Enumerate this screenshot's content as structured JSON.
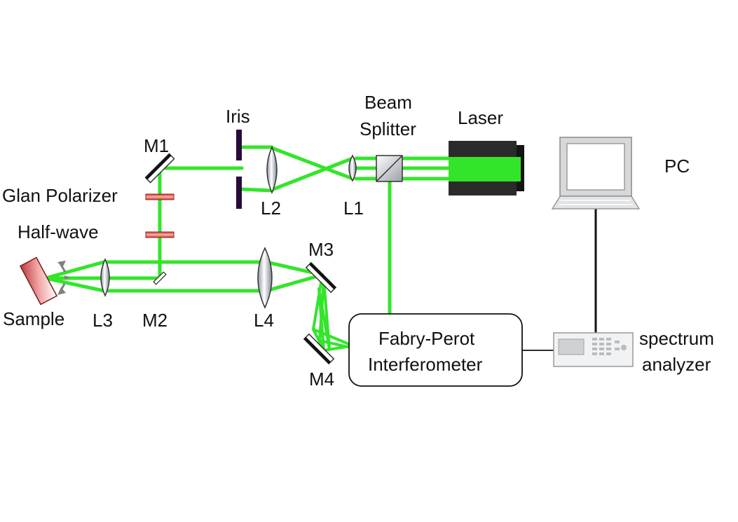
{
  "labels": {
    "iris": "Iris",
    "beam_splitter_line1": "Beam",
    "beam_splitter_line2": "Splitter",
    "laser": "Laser",
    "m1": "M1",
    "glan_polarizer": "Glan Polarizer",
    "half_wave": "Half-wave",
    "l2": "L2",
    "l1": "L1",
    "pc": "PC",
    "m3": "M3",
    "sample": "Sample",
    "l3": "L3",
    "m2": "M2",
    "l4": "L4",
    "fp_line1": "Fabry-Perot",
    "fp_line2": "Interferometer",
    "m4": "M4",
    "sa_line1": "spectrum",
    "sa_line2": "analyzer"
  },
  "colors": {
    "beam": "#33e52a",
    "laser_body": "#2b2b2b",
    "sample": "#e88a8a",
    "waveplate": "#e05a50",
    "iris": "#2a0a3a"
  }
}
